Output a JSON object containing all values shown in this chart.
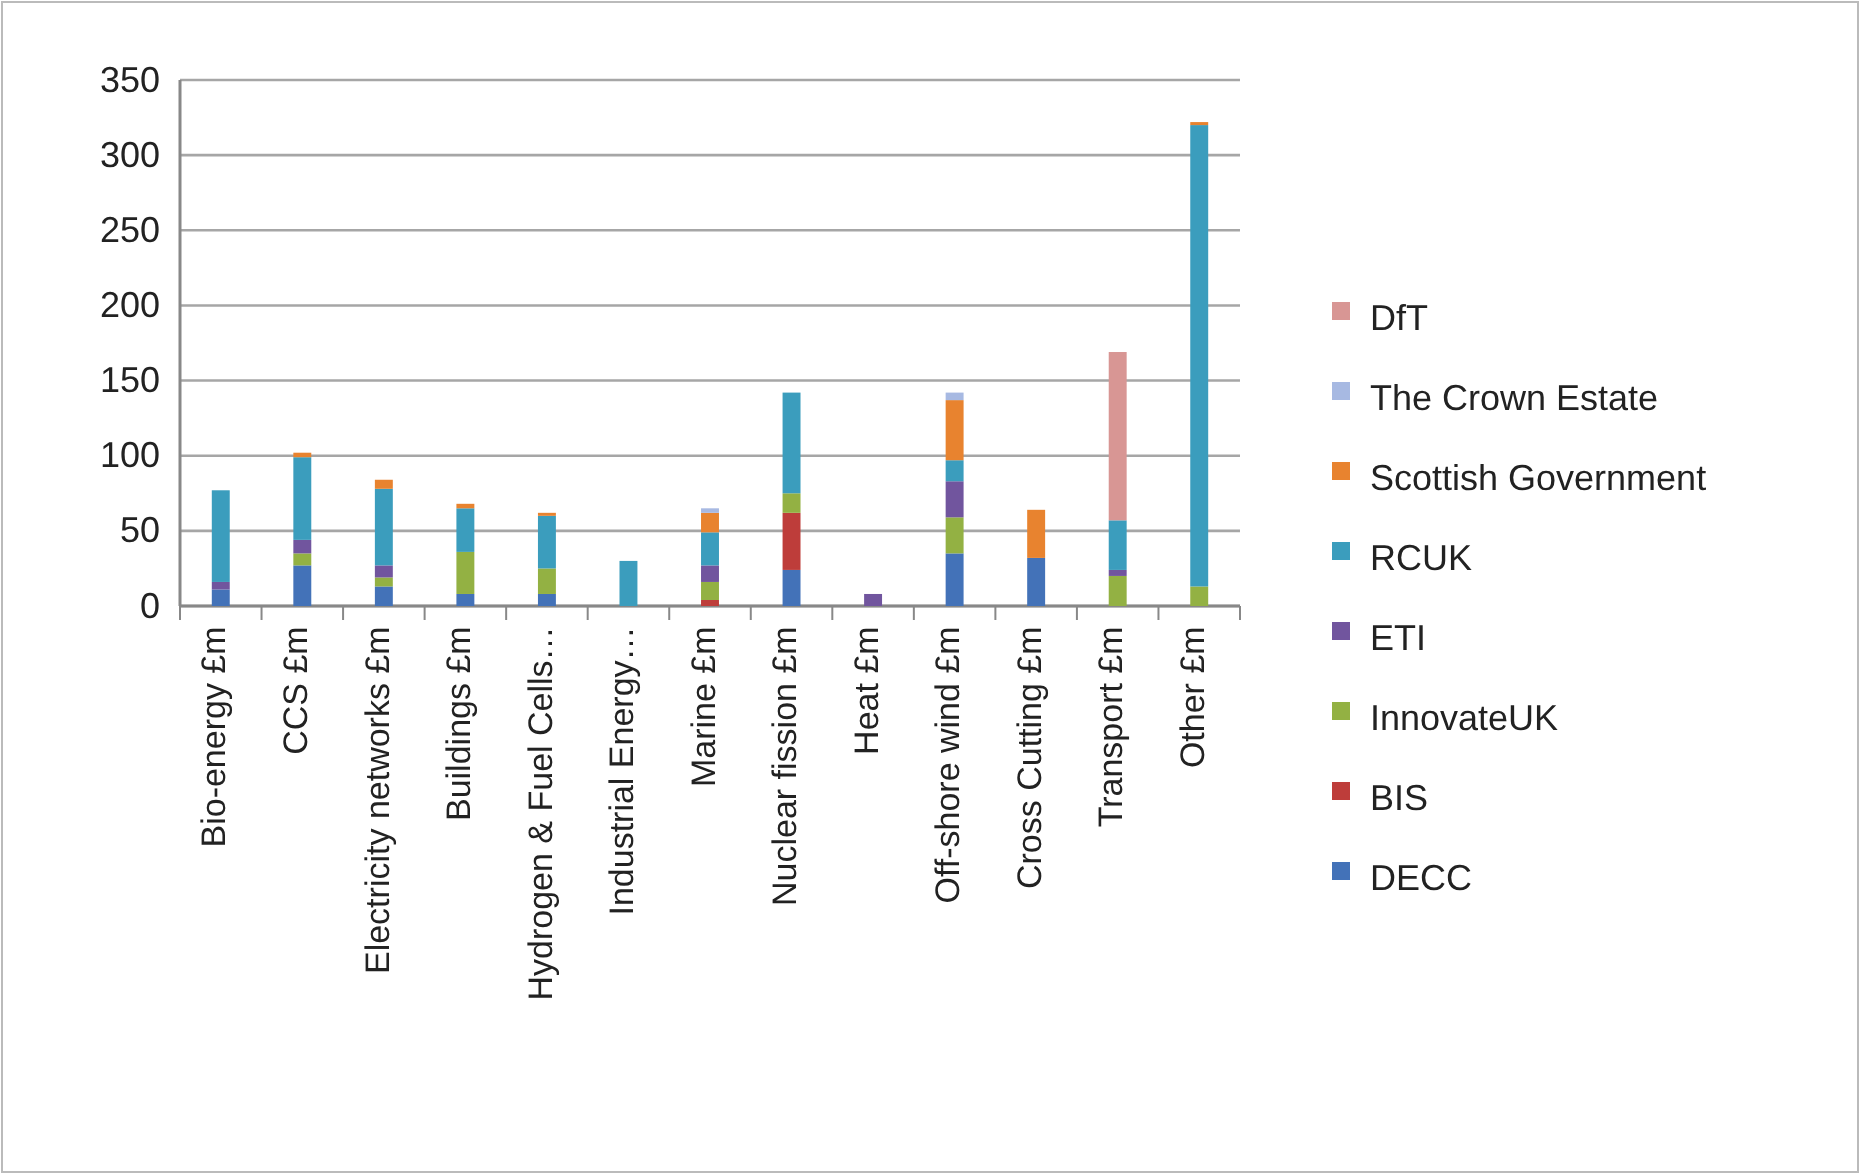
{
  "chart_data": {
    "type": "bar",
    "stacked": true,
    "categories": [
      "Bio-energy £m",
      "CCS £m",
      "Electricity networks £m",
      "Buildings £m",
      "Hydrogen & Fuel Cells…",
      "Industrial Energy…",
      "Marine £m",
      "Nuclear fission £m",
      "Heat £m",
      "Off-shore wind £m",
      "Cross Cutting £m",
      "Transport £m",
      "Other £m"
    ],
    "series": [
      {
        "name": "DECC",
        "color": "#4372b8",
        "values": [
          11,
          27,
          13,
          8,
          8,
          0,
          0,
          24,
          0,
          35,
          32,
          0,
          0
        ]
      },
      {
        "name": "BIS",
        "color": "#be3d3a",
        "values": [
          0,
          0,
          0,
          0,
          0,
          0,
          4,
          38,
          0,
          0,
          0,
          0,
          0
        ]
      },
      {
        "name": "InnovateUK",
        "color": "#93b143",
        "values": [
          0,
          8,
          6,
          28,
          17,
          0,
          12,
          13,
          0,
          24,
          0,
          20,
          13
        ]
      },
      {
        "name": "ETI",
        "color": "#71559e",
        "values": [
          5,
          9,
          8,
          0,
          0,
          0,
          11,
          0,
          8,
          24,
          0,
          4,
          0
        ]
      },
      {
        "name": "RCUK",
        "color": "#3b9dbd",
        "values": [
          61,
          55,
          51,
          29,
          35,
          30,
          22,
          67,
          0,
          14,
          0,
          33,
          307
        ]
      },
      {
        "name": "Scottish Government",
        "color": "#e8832f",
        "values": [
          0,
          3,
          6,
          3,
          2,
          0,
          13,
          0,
          0,
          40,
          32,
          0,
          2
        ]
      },
      {
        "name": "The Crown Estate",
        "color": "#a7b9e2",
        "values": [
          null,
          0,
          0,
          0,
          0,
          0,
          3,
          0,
          0,
          5,
          0,
          0,
          0
        ]
      },
      {
        "name": "DfT",
        "color": "#d89694",
        "values": [
          0,
          0,
          0,
          0,
          0,
          0,
          0,
          0,
          0,
          0,
          0,
          112,
          0
        ]
      }
    ],
    "ylim": [
      0,
      350
    ],
    "yticks": [
      0,
      50,
      100,
      150,
      200,
      250,
      300,
      350
    ],
    "grid": "y",
    "legend": "right"
  }
}
